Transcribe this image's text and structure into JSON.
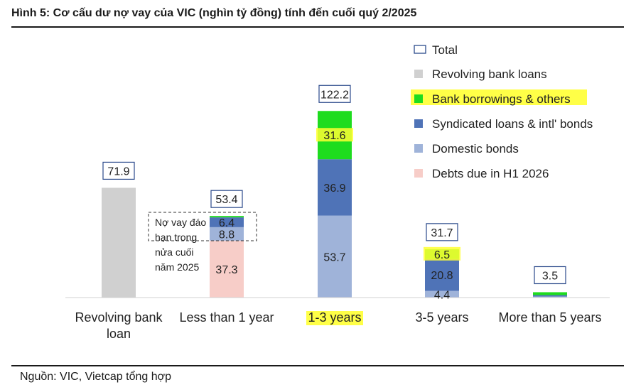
{
  "figure": {
    "title": "Hình 5: Cơ cấu dư nợ vay của VIC (nghìn tỷ đồng) tính đến cuối quý 2/2025",
    "source": "Nguồn: VIC, Vietcap tổng hợp"
  },
  "annotation": {
    "lines": [
      "Nợ vay đáo",
      "hạn trong",
      "nửa cuối",
      "năm 2025"
    ]
  },
  "chart_data": {
    "type": "bar",
    "stacked": true,
    "title": "",
    "xlabel": "",
    "ylabel": "",
    "ylim": [
      0,
      125
    ],
    "grid": false,
    "legend_position": "top-right",
    "categories": [
      [
        "Revolving bank",
        "loan"
      ],
      [
        "Less than 1 year"
      ],
      [
        "1-3 years"
      ],
      [
        "3-5 years"
      ],
      [
        "More than 5 years"
      ]
    ],
    "highlighted_category": 2,
    "totals": [
      71.9,
      53.4,
      122.2,
      31.7,
      3.5
    ],
    "total_legend_label": "Total",
    "series": [
      {
        "name": "Revolving bank loans",
        "color": "#d0d0d0",
        "values": [
          71.9,
          0,
          0,
          0,
          0
        ],
        "labels": [
          false,
          false,
          false,
          false,
          false
        ],
        "legend_highlight": false
      },
      {
        "name": "Debts due in H1 2026",
        "color": "#f7cdc8",
        "values": [
          0,
          37.3,
          0,
          0,
          0
        ],
        "labels": [
          false,
          true,
          false,
          false,
          false
        ],
        "legend_highlight": false
      },
      {
        "name": "Domestic bonds",
        "color": "#9fb3d9",
        "values": [
          0,
          8.8,
          53.7,
          4.4,
          0.7
        ],
        "labels": [
          false,
          true,
          true,
          true,
          false
        ],
        "legend_highlight": false
      },
      {
        "name": "Syndicated loans & intl' bonds",
        "color": "#4f73b7",
        "values": [
          0,
          6.4,
          36.9,
          20.8,
          0.9
        ],
        "labels": [
          false,
          true,
          true,
          true,
          false
        ],
        "legend_highlight": false
      },
      {
        "name": "Bank borrowings & others",
        "color": "#1edc1e",
        "values": [
          0,
          0.9,
          31.6,
          6.5,
          1.9
        ],
        "labels": [
          false,
          false,
          true,
          true,
          false
        ],
        "legend_highlight": true
      }
    ],
    "legend_order": [
      "Revolving bank loans",
      "Bank borrowings & others",
      "Syndicated loans & intl' bonds",
      "Domestic bonds",
      "Debts due in H1 2026"
    ],
    "highlight_color": "#ffff33"
  }
}
